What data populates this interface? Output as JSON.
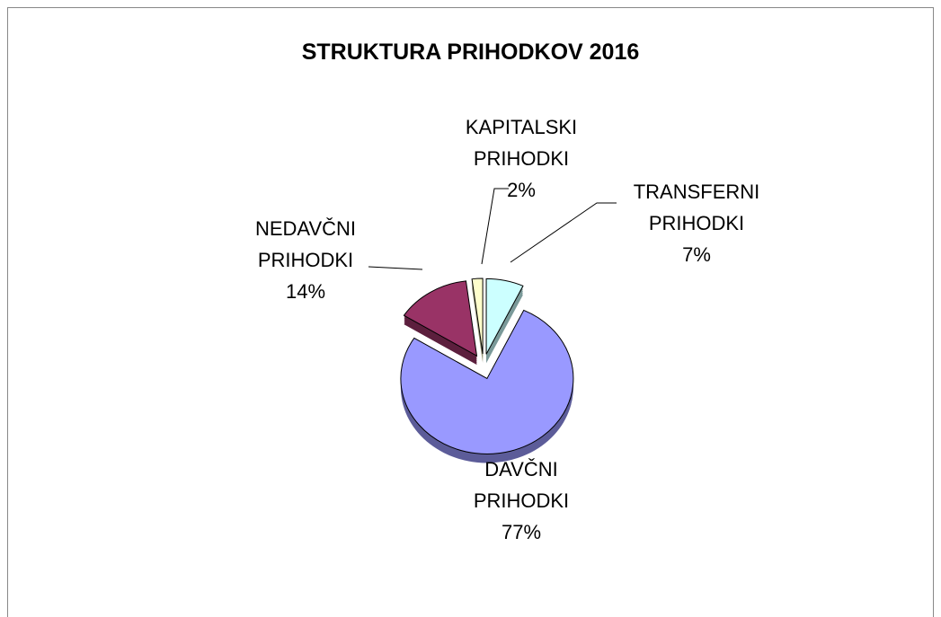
{
  "chart_data": {
    "type": "pie",
    "title": "STRUKTURA PRIHODKOV 2016",
    "categories": [
      "TRANSFERNI PRIHODKI",
      "DAVČNI PRIHODKI",
      "NEDAVČNI PRIHODKI",
      "KAPITALSKI PRIHODKI"
    ],
    "values": [
      7,
      77,
      14,
      2
    ],
    "value_labels": [
      "7%",
      "77%",
      "14%",
      "2%"
    ],
    "colors": [
      "#ccffff",
      "#9999ff",
      "#993366",
      "#ffffcc"
    ]
  }
}
